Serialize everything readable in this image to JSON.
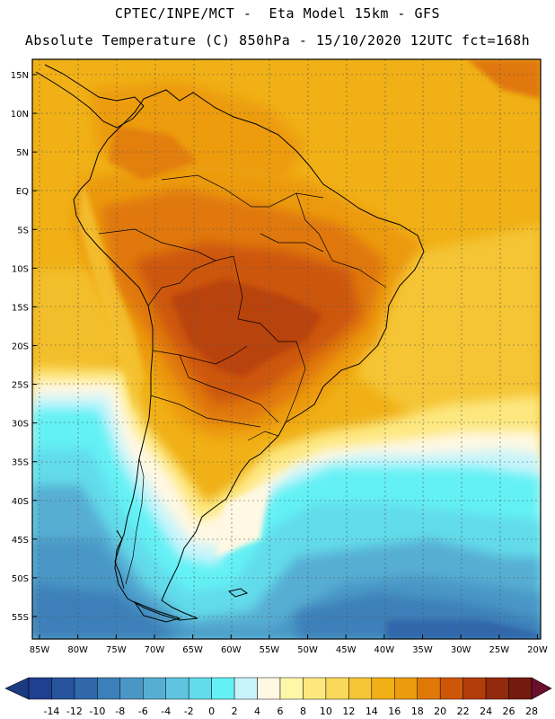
{
  "title": {
    "line1": "CPTEC/INPE/MCT -  Eta Model 15km - GFS",
    "line2": "Absolute Temperature (C) 850hPa - 15/10/2020 12UTC fct=168h"
  },
  "axes": {
    "lat_labels": [
      "15N",
      "10N",
      "5N",
      "EQ",
      "5S",
      "10S",
      "15S",
      "20S",
      "25S",
      "30S",
      "35S",
      "40S",
      "45S",
      "50S",
      "55S"
    ],
    "lon_labels": [
      "85W",
      "80W",
      "75W",
      "70W",
      "65W",
      "60W",
      "55W",
      "50W",
      "45W",
      "40W",
      "35W",
      "30W",
      "25W",
      "20W"
    ]
  },
  "colorbar": {
    "ticks": [
      "-14",
      "-12",
      "-10",
      "-8",
      "-6",
      "-4",
      "-2",
      "0",
      "2",
      "4",
      "6",
      "8",
      "10",
      "12",
      "14",
      "16",
      "18",
      "20",
      "22",
      "24",
      "26",
      "28"
    ],
    "colors": [
      "#1f3f8f",
      "#27539d",
      "#3068ab",
      "#3c80b9",
      "#4a97c6",
      "#56aed3",
      "#5fc4df",
      "#62dbea",
      "#63f1f5",
      "#c8f4fb",
      "#fff8e3",
      "#fff7a8",
      "#fde880",
      "#f9d85a",
      "#f5c535",
      "#f0b016",
      "#ec9a0e",
      "#e07808",
      "#cd5708",
      "#b33d0a",
      "#922a0d",
      "#741b10"
    ],
    "under_color": "#1b3a82",
    "over_color": "#6b0f2c"
  },
  "palette": {
    "ocean_north": "#f0b016",
    "ocean_mid": "#f5c535",
    "warm_land": "#e07808",
    "hot_core": "#cd5708",
    "hottest": "#b33d0a",
    "cold_core": "#27539d"
  }
}
